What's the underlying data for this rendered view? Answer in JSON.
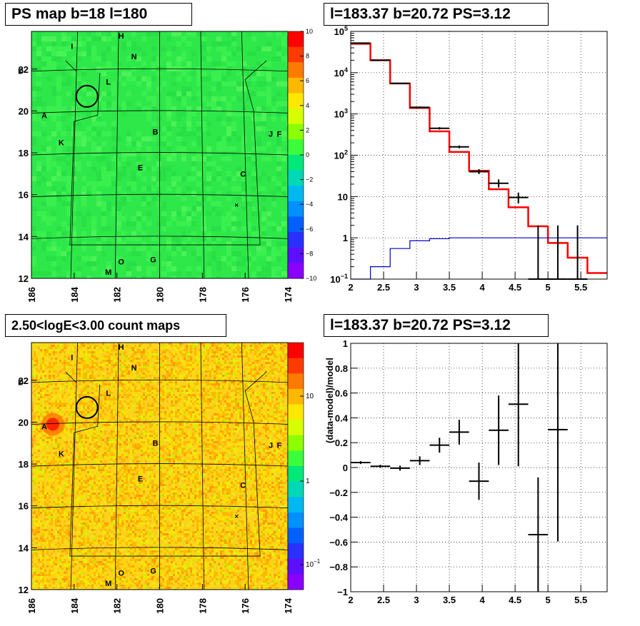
{
  "panels": {
    "tl_title": "PS map b=18 l=180",
    "tr_title": "l=183.37 b=20.72 PS=3.12",
    "bl_title": "2.50<logE<3.00 count maps",
    "br_title": "l=183.37 b=20.72 PS=3.12"
  },
  "chart_data": [
    {
      "type": "heatmap",
      "title": "PS map b=18 l=180",
      "x_ticks": [
        "186",
        "184",
        "182",
        "180",
        "178",
        "176",
        "174"
      ],
      "y_ticks": [
        "12",
        "14",
        "16",
        "18",
        "20",
        "22"
      ],
      "xlim": [
        186,
        174
      ],
      "ylim": [
        12,
        23.8
      ],
      "colorbar": {
        "min": -10,
        "max": 10,
        "ticks": [
          "10",
          "8",
          "6",
          "4",
          "2",
          "0",
          "−2",
          "−4",
          "−6",
          "−8",
          "−10"
        ],
        "colors": [
          "#ff0000",
          "#ff3a00",
          "#ff7a00",
          "#ffb800",
          "#ffe800",
          "#d6ff00",
          "#8cff00",
          "#3cff3c",
          "#00e87a",
          "#00d8b8",
          "#00b8f0",
          "#0090ff",
          "#0060ff",
          "#2a30ff",
          "#5c10ff",
          "#8a00ff"
        ]
      },
      "background_color": "#2ee84a",
      "sources": [
        {
          "label": "H",
          "l": 181.8,
          "b": 23.6
        },
        {
          "label": "I",
          "l": 184.1,
          "b": 23.1
        },
        {
          "label": "N",
          "l": 181.2,
          "b": 22.6
        },
        {
          "label": "D",
          "l": 186.5,
          "b": 21.9
        },
        {
          "label": "L",
          "l": 182.4,
          "b": 21.4
        },
        {
          "label": "A",
          "l": 185.4,
          "b": 19.8
        },
        {
          "label": "B",
          "l": 180.2,
          "b": 19.0
        },
        {
          "label": "J",
          "l": 174.8,
          "b": 18.9
        },
        {
          "label": "F",
          "l": 174.4,
          "b": 18.9
        },
        {
          "label": "K",
          "l": 184.6,
          "b": 18.5
        },
        {
          "label": "E",
          "l": 180.9,
          "b": 17.3
        },
        {
          "label": "C",
          "l": 176.1,
          "b": 17.0
        },
        {
          "label": "O",
          "l": 181.8,
          "b": 12.8
        },
        {
          "label": "G",
          "l": 180.3,
          "b": 12.9
        },
        {
          "label": "M",
          "l": 182.4,
          "b": 12.3
        }
      ],
      "marker_circle": {
        "l": 183.4,
        "b": 20.7
      },
      "cross_marker": {
        "l": 176.4,
        "b": 15.5
      }
    },
    {
      "type": "line",
      "title": "l=183.37 b=20.72 PS=3.12",
      "yscale": "log",
      "xlim": [
        2,
        5.9
      ],
      "ylim": [
        0.1,
        100000
      ],
      "x_ticks": [
        "2",
        "2.5",
        "3",
        "3.5",
        "4",
        "4.5",
        "5",
        "5.5"
      ],
      "y_ticks": [
        "10^-1",
        "1",
        "10",
        "10^2",
        "10^3",
        "10^4",
        "10^5"
      ],
      "grid": true,
      "series": [
        {
          "color": "#ff0000",
          "style": "step",
          "edges": [
            2,
            2.3,
            2.6,
            2.9,
            3.2,
            3.5,
            3.8,
            4.1,
            4.4,
            4.7,
            5.0,
            5.3,
            5.6,
            5.9
          ],
          "values": [
            50000,
            20000,
            5500,
            1400,
            380,
            120,
            42,
            15,
            5.5,
            1.9,
            0.75,
            0.33,
            0.14
          ]
        },
        {
          "color": "#0000cc",
          "style": "step",
          "edges": [
            2,
            2.3,
            2.6,
            2.9,
            3.2,
            3.5,
            3.8,
            4.1,
            4.4,
            4.7,
            5.0,
            5.3,
            5.6,
            5.9
          ],
          "values": [
            0.06,
            0.2,
            0.55,
            0.85,
            0.95,
            1.0,
            1.0,
            1.0,
            1.0,
            1.0,
            1.0,
            1.0,
            1.0
          ]
        },
        {
          "color": "#000000",
          "style": "errorbar",
          "x": [
            2.15,
            2.45,
            2.75,
            3.05,
            3.35,
            3.65,
            3.95,
            4.25,
            4.55,
            4.85,
            5.15,
            5.45
          ],
          "xerr": 0.15,
          "y": [
            52000,
            20000,
            5500,
            1450,
            450,
            160,
            40,
            21,
            9.5,
            0.1,
            0.1,
            0.1
          ],
          "ylo": [
            51000,
            19700,
            5350,
            1380,
            420,
            148,
            35,
            16.5,
            6.8,
            0.1,
            0.1,
            0.1
          ],
          "yhi": [
            53000,
            20300,
            5650,
            1520,
            480,
            172,
            46,
            26,
            12.5,
            2,
            2,
            2
          ]
        }
      ]
    },
    {
      "type": "heatmap",
      "title": "2.50<logE<3.00 count maps",
      "x_ticks": [
        "186",
        "184",
        "182",
        "180",
        "178",
        "176",
        "174"
      ],
      "y_ticks": [
        "12",
        "14",
        "16",
        "18",
        "20",
        "22"
      ],
      "xlim": [
        186,
        174
      ],
      "ylim": [
        12,
        23.8
      ],
      "colorbar": {
        "scale": "log",
        "ticks": [
          "10",
          "1",
          "10^-1"
        ],
        "colors": [
          "#ff0000",
          "#ff3a00",
          "#ff7a00",
          "#ffb800",
          "#ffe800",
          "#d6ff00",
          "#8cff00",
          "#3cff3c",
          "#00e87a",
          "#00d8b8",
          "#00b8f0",
          "#0090ff",
          "#0060ff",
          "#2a30ff",
          "#5c10ff",
          "#8a00ff"
        ]
      },
      "background_color": "#ffd020",
      "hotspot": {
        "l": 185.0,
        "b": 19.9
      },
      "sources": [
        {
          "label": "H",
          "l": 181.8,
          "b": 23.6
        },
        {
          "label": "I",
          "l": 184.1,
          "b": 23.1
        },
        {
          "label": "N",
          "l": 181.2,
          "b": 22.6
        },
        {
          "label": "D",
          "l": 186.5,
          "b": 21.9
        },
        {
          "label": "L",
          "l": 182.4,
          "b": 21.4
        },
        {
          "label": "A",
          "l": 185.4,
          "b": 19.8
        },
        {
          "label": "B",
          "l": 180.2,
          "b": 19.0
        },
        {
          "label": "J",
          "l": 174.8,
          "b": 18.9
        },
        {
          "label": "F",
          "l": 174.4,
          "b": 18.9
        },
        {
          "label": "K",
          "l": 184.6,
          "b": 18.5
        },
        {
          "label": "E",
          "l": 180.9,
          "b": 17.3
        },
        {
          "label": "C",
          "l": 176.1,
          "b": 17.0
        },
        {
          "label": "O",
          "l": 181.8,
          "b": 12.8
        },
        {
          "label": "G",
          "l": 180.3,
          "b": 12.9
        },
        {
          "label": "M",
          "l": 182.4,
          "b": 12.3
        }
      ],
      "marker_circle": {
        "l": 183.4,
        "b": 20.7
      },
      "cross_marker": {
        "l": 176.4,
        "b": 15.5
      }
    },
    {
      "type": "scatter",
      "title": "l=183.37 b=20.72 PS=3.12",
      "ylabel": "(data-model)/model",
      "xlim": [
        2,
        5.9
      ],
      "ylim": [
        -1,
        1
      ],
      "x_ticks": [
        "2",
        "2.5",
        "3",
        "3.5",
        "4",
        "4.5",
        "5",
        "5.5"
      ],
      "y_ticks": [
        "−1",
        "−0.8",
        "−0.6",
        "−0.4",
        "−0.2",
        "0",
        "0.2",
        "0.4",
        "0.6",
        "0.8",
        "1"
      ],
      "grid": true,
      "xerr": 0.15,
      "x": [
        2.15,
        2.45,
        2.75,
        3.05,
        3.35,
        3.65,
        3.95,
        4.25,
        4.55,
        4.85,
        5.15
      ],
      "y": [
        0.04,
        0.01,
        -0.005,
        0.055,
        0.18,
        0.285,
        -0.11,
        0.3,
        0.51,
        -0.54,
        0.305
      ],
      "yerr": [
        0.012,
        0.012,
        0.02,
        0.035,
        0.06,
        0.1,
        0.15,
        0.28,
        0.5,
        0.46,
        0.9
      ]
    }
  ]
}
